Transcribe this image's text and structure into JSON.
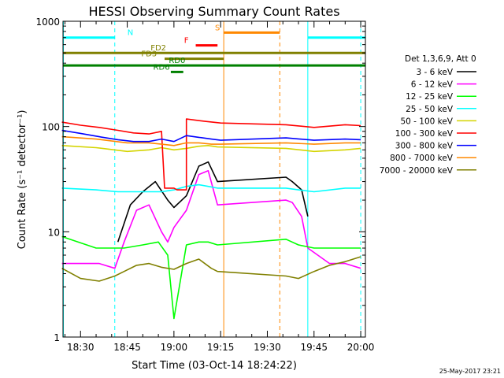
{
  "chart_data": {
    "type": "line",
    "title": "HESSI Observing Summary Count Rates",
    "xlabel": "Start Time (03-Oct-14 18:24:22)",
    "ylabel": "Count Rate (s⁻¹ detector⁻¹)",
    "y_scale": "log",
    "ylim": [
      1,
      1000
    ],
    "xlim": [
      "18:24:22",
      "20:01:30"
    ],
    "grid": false,
    "legend_position": "right",
    "x_ticks": [
      "18:30",
      "18:45",
      "19:00",
      "19:15",
      "19:30",
      "19:45",
      "20:00"
    ],
    "y_ticks": [
      "1",
      "10",
      "100",
      "1000"
    ],
    "legend_header": "Det 1,3,6,9, Att 0",
    "series": [
      {
        "name": "3 - 6 keV",
        "color": "#000000",
        "x": [
          "18:42",
          "18:46",
          "18:50",
          "18:54",
          "18:58",
          "19:00",
          "19:04",
          "19:08",
          "19:11",
          "19:14",
          "19:36",
          "19:38",
          "19:41",
          "19:43"
        ],
        "y": [
          8,
          18,
          24,
          30,
          20,
          17,
          22,
          42,
          46,
          30,
          33,
          30,
          25,
          14
        ]
      },
      {
        "name": "6 - 12 keV",
        "color": "#ff00ff",
        "x": [
          "18:24",
          "18:30",
          "18:36",
          "18:41",
          "18:44",
          "18:48",
          "18:52",
          "18:56",
          "18:58",
          "19:00",
          "19:04",
          "19:08",
          "19:11",
          "19:14",
          "19:36",
          "19:38",
          "19:41",
          "19:43",
          "19:50",
          "19:55",
          "20:00"
        ],
        "y": [
          5,
          5,
          5,
          4.5,
          8,
          16,
          18,
          10,
          8,
          11,
          16,
          35,
          38,
          18,
          20,
          19,
          14,
          7,
          5,
          5,
          4.5
        ]
      },
      {
        "name": "12 - 25 keV",
        "color": "#00ff00",
        "x": [
          "18:24",
          "18:35",
          "18:44",
          "18:50",
          "18:55",
          "18:58",
          "19:00",
          "19:04",
          "19:08",
          "19:11",
          "19:14",
          "19:36",
          "19:40",
          "19:45",
          "19:55",
          "20:00"
        ],
        "y": [
          9,
          7,
          7,
          7.5,
          8,
          6,
          1.5,
          7.5,
          8,
          8,
          7.5,
          8.5,
          7.5,
          7,
          7,
          7
        ]
      },
      {
        "name": "25 - 50 keV",
        "color": "#00ffff",
        "x": [
          "18:24",
          "18:35",
          "18:42",
          "18:46",
          "18:52",
          "18:56",
          "19:00",
          "19:04",
          "19:08",
          "19:11",
          "19:14",
          "19:36",
          "19:40",
          "19:45",
          "19:55",
          "20:00"
        ],
        "y": [
          26,
          25,
          24,
          24,
          24,
          24,
          25,
          27,
          28,
          27,
          26,
          26,
          25,
          24,
          26,
          26
        ]
      },
      {
        "name": "50 - 100 keV",
        "color": "#d4d400",
        "x": [
          "18:24",
          "18:35",
          "18:45",
          "18:52",
          "18:56",
          "19:00",
          "19:04",
          "19:08",
          "19:11",
          "19:14",
          "19:36",
          "19:45",
          "19:55",
          "20:00"
        ],
        "y": [
          66,
          63,
          58,
          60,
          63,
          60,
          62,
          65,
          66,
          64,
          62,
          58,
          60,
          62
        ]
      },
      {
        "name": "100 - 300 keV",
        "color": "#ff0000",
        "x": [
          "18:24",
          "18:30",
          "18:36",
          "18:42",
          "18:47",
          "18:52",
          "18:56",
          "18:57",
          "19:00",
          "19:01",
          "19:04",
          "19:04",
          "19:10",
          "19:15",
          "19:36",
          "19:45",
          "19:55",
          "20:00"
        ],
        "y": [
          110,
          103,
          98,
          92,
          87,
          85,
          90,
          26,
          26,
          25,
          25,
          118,
          112,
          108,
          104,
          98,
          104,
          102
        ]
      },
      {
        "name": "300 - 800 keV",
        "color": "#0000ff",
        "x": [
          "18:24",
          "18:30",
          "18:36",
          "18:42",
          "18:47",
          "18:52",
          "18:56",
          "19:00",
          "19:04",
          "19:08",
          "19:12",
          "19:15",
          "19:36",
          "19:45",
          "19:55",
          "20:00"
        ],
        "y": [
          92,
          86,
          80,
          75,
          72,
          72,
          76,
          72,
          82,
          79,
          76,
          74,
          78,
          74,
          76,
          75
        ]
      },
      {
        "name": "800 - 7000 keV",
        "color": "#ff8800",
        "x": [
          "18:24",
          "18:35",
          "18:45",
          "18:52",
          "18:56",
          "19:00",
          "19:04",
          "19:08",
          "19:12",
          "19:15",
          "19:36",
          "19:45",
          "19:55",
          "20:00"
        ],
        "y": [
          80,
          76,
          70,
          70,
          68,
          66,
          70,
          70,
          68,
          68,
          70,
          68,
          70,
          70
        ]
      },
      {
        "name": "7000 - 20000 keV",
        "color": "#808000",
        "x": [
          "18:24",
          "18:30",
          "18:36",
          "18:41",
          "18:44",
          "18:48",
          "18:52",
          "18:56",
          "19:00",
          "19:04",
          "19:08",
          "19:12",
          "19:14",
          "19:36",
          "19:40",
          "19:45",
          "19:50",
          "19:55",
          "20:00"
        ],
        "y": [
          4.5,
          3.6,
          3.4,
          3.8,
          4.2,
          4.8,
          5,
          4.6,
          4.4,
          5,
          5.5,
          4.5,
          4.2,
          3.8,
          3.6,
          4.2,
          4.8,
          5.2,
          5.8
        ]
      }
    ],
    "flag_bars": [
      {
        "label": "N",
        "color": "#00ffff",
        "y": 700,
        "segments": [
          [
            "18:24",
            "18:41"
          ],
          [
            "19:43",
            "20:01:30"
          ]
        ],
        "label_x": "18:46"
      },
      {
        "label": "S",
        "color": "#ff8800",
        "y": 780,
        "segments": [
          [
            "19:16",
            "19:34"
          ]
        ],
        "label_x": "19:14"
      },
      {
        "label": "F",
        "color": "#ff0000",
        "y": 590,
        "segments": [
          [
            "19:07",
            "19:14"
          ]
        ],
        "label_x": "19:04"
      },
      {
        "label": "FD2",
        "color": "#808000",
        "y": 500,
        "segments": [
          [
            "18:24",
            "20:01:30"
          ]
        ],
        "label_x": "18:55"
      },
      {
        "label": "FD3",
        "color": "#808000",
        "y": 440,
        "segments": [
          [
            "18:57",
            "19:16"
          ]
        ],
        "label_x": "18:52"
      },
      {
        "label": "RD0",
        "color": "#008000",
        "y": 380,
        "segments": [
          [
            "18:24",
            "20:01:30"
          ]
        ],
        "label_x": "19:01"
      },
      {
        "label": "RD6",
        "color": "#008000",
        "y": 330,
        "segments": [
          [
            "18:59",
            "19:03"
          ]
        ],
        "label_x": "18:56"
      }
    ],
    "vertical_markers": [
      {
        "x": "18:24:30",
        "color": "#00ffff",
        "style": "solid"
      },
      {
        "x": "18:41",
        "color": "#00ffff",
        "style": "dashed"
      },
      {
        "x": "19:16",
        "color": "#ff8800",
        "style": "solid"
      },
      {
        "x": "19:34",
        "color": "#ff8800",
        "style": "dashed"
      },
      {
        "x": "19:43",
        "color": "#00ffff",
        "style": "solid"
      },
      {
        "x": "20:00",
        "color": "#00ffff",
        "style": "dashed"
      }
    ]
  },
  "footer_date": "25-May-2017 23:21"
}
